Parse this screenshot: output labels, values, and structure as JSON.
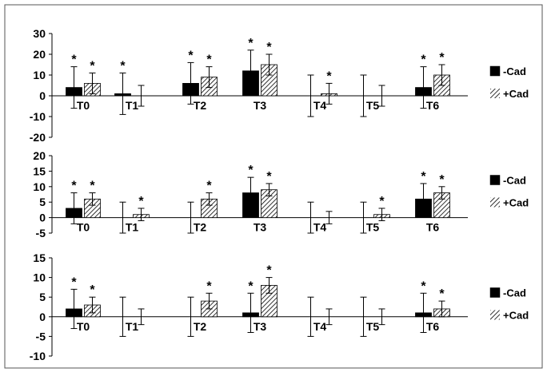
{
  "chart_data": [
    {
      "type": "bar",
      "categories": [
        "T0",
        "T1",
        "T2",
        "T3",
        "T4",
        "T5",
        "T6"
      ],
      "ylim": [
        -20,
        30
      ],
      "yticks": [
        "30",
        "20",
        "10",
        "0",
        "-10",
        "-20"
      ],
      "yticks_values": [
        30,
        20,
        10,
        0,
        -10,
        -20
      ],
      "legend_position": "right",
      "grid": false,
      "series": [
        {
          "name": "-Cad",
          "fill": "solid",
          "color": "#000000",
          "values": [
            4,
            1,
            6,
            12,
            0,
            0,
            4
          ],
          "errors": [
            10,
            10,
            10,
            10,
            10,
            10,
            10
          ],
          "significant": [
            true,
            true,
            true,
            true,
            false,
            false,
            true
          ]
        },
        {
          "name": "+Cad",
          "fill": "hatched",
          "color": "#000000",
          "values": [
            6,
            0,
            9,
            15,
            1,
            0,
            10
          ],
          "errors": [
            5,
            5,
            5,
            5,
            5,
            5,
            5
          ],
          "significant": [
            true,
            false,
            true,
            true,
            true,
            false,
            true
          ]
        }
      ],
      "marker": "*"
    },
    {
      "type": "bar",
      "categories": [
        "T0",
        "T1",
        "T2",
        "T3",
        "T4",
        "T5",
        "T6"
      ],
      "ylim": [
        -5,
        20
      ],
      "yticks": [
        "20",
        "15",
        "10",
        "5",
        "0",
        "-5"
      ],
      "yticks_values": [
        20,
        15,
        10,
        5,
        0,
        -5
      ],
      "legend_position": "right",
      "grid": false,
      "series": [
        {
          "name": "-Cad",
          "fill": "solid",
          "color": "#000000",
          "values": [
            3,
            0,
            0,
            8,
            0,
            0,
            6
          ],
          "errors": [
            5,
            5,
            5,
            5,
            5,
            5,
            5
          ],
          "significant": [
            true,
            false,
            false,
            true,
            false,
            false,
            true
          ]
        },
        {
          "name": "+Cad",
          "fill": "hatched",
          "color": "#000000",
          "values": [
            6,
            1,
            6,
            9,
            0,
            1,
            8
          ],
          "errors": [
            2,
            2,
            2,
            2,
            2,
            2,
            2
          ],
          "significant": [
            true,
            true,
            true,
            true,
            false,
            true,
            true
          ]
        }
      ],
      "marker": "*"
    },
    {
      "type": "bar",
      "categories": [
        "T0",
        "T1",
        "T2",
        "T3",
        "T4",
        "T5",
        "T6"
      ],
      "ylim": [
        -10,
        15
      ],
      "yticks": [
        "15",
        "10",
        "5",
        "0",
        "-5",
        "-10"
      ],
      "yticks_values": [
        15,
        10,
        5,
        0,
        -5,
        -10
      ],
      "legend_position": "right",
      "grid": false,
      "series": [
        {
          "name": "-Cad",
          "fill": "solid",
          "color": "#000000",
          "values": [
            2,
            0,
            0,
            1,
            0,
            0,
            1
          ],
          "errors": [
            5,
            5,
            5,
            5,
            5,
            5,
            5
          ],
          "significant": [
            true,
            false,
            false,
            true,
            false,
            false,
            true
          ]
        },
        {
          "name": "+Cad",
          "fill": "hatched",
          "color": "#000000",
          "values": [
            3,
            0,
            4,
            8,
            0,
            0,
            2
          ],
          "errors": [
            2,
            2,
            2,
            2,
            2,
            2,
            2
          ],
          "significant": [
            true,
            false,
            true,
            true,
            false,
            false,
            true
          ]
        }
      ],
      "marker": "*"
    }
  ]
}
